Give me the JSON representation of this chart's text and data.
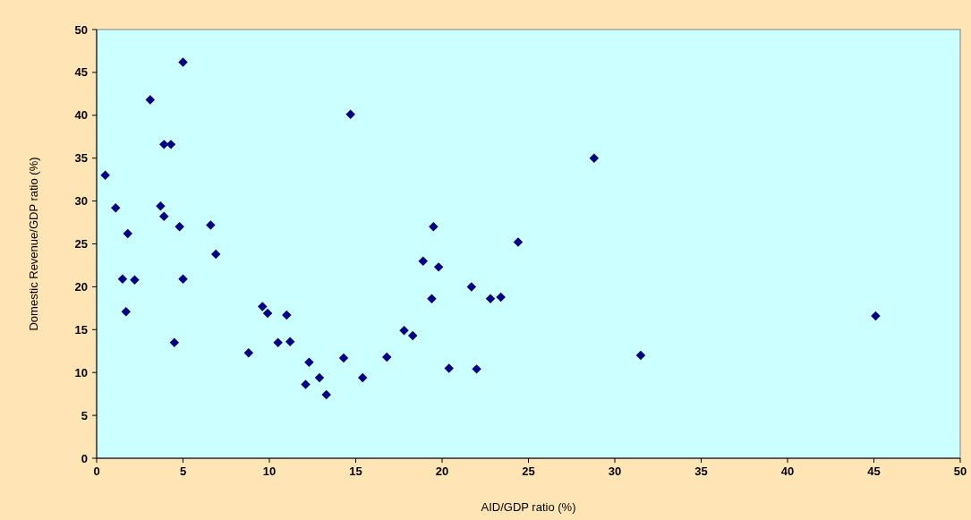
{
  "chart_data": {
    "type": "scatter",
    "xlabel": "AID/GDP ratio (%)",
    "ylabel": "Domestic Revenue/GDP ratio (%)",
    "xlim": [
      0,
      50
    ],
    "xticks": [
      0,
      5,
      10,
      15,
      20,
      25,
      30,
      35,
      40,
      45,
      50
    ],
    "ylim": [
      0,
      50
    ],
    "yticks": [
      0,
      5,
      10,
      15,
      20,
      25,
      30,
      35,
      40,
      45,
      50
    ],
    "grid": false,
    "marker": "diamond",
    "series": [
      {
        "color": "#000080",
        "x": [
          0.5,
          1.1,
          1.8,
          1.5,
          2.2,
          1.7,
          3.1,
          3.7,
          3.9,
          3.9,
          4.3,
          4.5,
          4.8,
          5.0,
          5.0,
          6.6,
          6.9,
          8.8,
          9.6,
          9.9,
          10.5,
          11.0,
          11.2,
          12.1,
          12.3,
          12.9,
          13.3,
          14.3,
          14.7,
          15.4,
          16.8,
          17.8,
          18.3,
          18.9,
          19.4,
          19.5,
          19.8,
          20.4,
          21.7,
          22.0,
          22.8,
          23.4,
          24.4,
          28.8,
          31.5,
          45.1
        ],
        "values": [
          33.0,
          29.2,
          26.2,
          20.9,
          20.8,
          17.1,
          41.8,
          29.4,
          28.2,
          36.6,
          36.6,
          13.5,
          27.0,
          46.2,
          20.9,
          27.2,
          23.8,
          12.3,
          17.7,
          16.9,
          13.5,
          16.7,
          13.6,
          8.6,
          11.2,
          9.4,
          7.4,
          11.7,
          40.1,
          9.4,
          11.8,
          14.9,
          14.3,
          23.0,
          18.6,
          27.0,
          22.3,
          10.5,
          20.0,
          10.4,
          18.6,
          18.8,
          25.2,
          35.0,
          12.0,
          16.6
        ]
      }
    ]
  }
}
